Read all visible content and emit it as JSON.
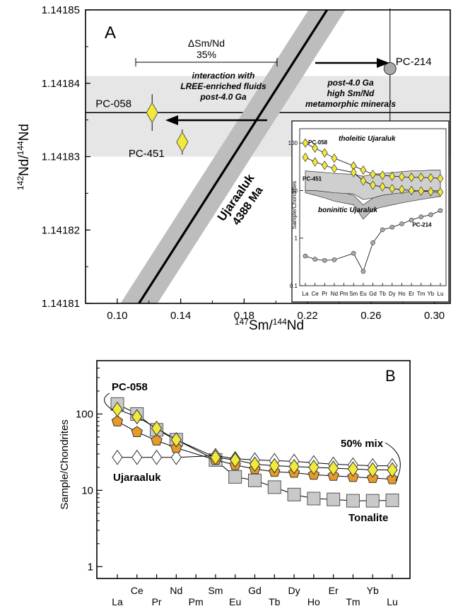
{
  "chart_data": [
    {
      "panel_label": "A",
      "type": "scatter",
      "xlabel": {
        "sup": "147",
        "main": "Sm/",
        "sup2": "144",
        "main2": "Nd"
      },
      "ylabel": {
        "sup": "142",
        "main": "Nd/",
        "sup2": "144",
        "main2": "Nd"
      },
      "xlim": [
        0.08,
        0.31
      ],
      "ylim": [
        1.14181,
        1.14185
      ],
      "x_ticks": [
        "0.10",
        "0.14",
        "0.18",
        "0.22",
        "0.26",
        "0.30"
      ],
      "x_tick_values": [
        0.1,
        0.14,
        0.18,
        0.22,
        0.26,
        0.3
      ],
      "y_ticks": [
        "1.14181",
        "1.14182",
        "1.14183",
        "1.14184",
        "1.14185"
      ],
      "y_tick_values": [
        1.14181,
        1.14182,
        1.14183,
        1.14184,
        1.14185
      ],
      "band": {
        "y_min": 1.14183,
        "y_max": 1.141841
      },
      "points": [
        {
          "label": "PC-058",
          "x": 0.122,
          "y": 1.141836,
          "y_err": 2.5e-06,
          "shape": "diamond",
          "color": "#f2ea3a"
        },
        {
          "label": "PC-451",
          "x": 0.141,
          "y": 1.141832,
          "y_err": 1.7e-06,
          "shape": "diamond",
          "color": "#f2ea3a"
        },
        {
          "label": "PC-214",
          "x": 0.272,
          "y": 1.141842,
          "y_err": 8.2e-06,
          "shape": "circle",
          "color": "#aaaaaa"
        }
      ],
      "isochron": {
        "label1": "Ujaraaluk",
        "label2": "4388 Ma",
        "x1": 0.108,
        "y1": 1.14181,
        "x2": 0.238,
        "y2": 1.14185,
        "uncertainty_color": "#bdbdbd"
      },
      "annotations": {
        "delta_label": "ΔSm/Nd",
        "delta_value": "35%",
        "left_text_1": "interaction with",
        "left_text_2": "LREE-enriched fluids",
        "left_text_3": "post-4.0 Ga",
        "right_text_1": "post-4.0 Ga",
        "right_text_2": "high Sm/Nd",
        "right_text_3": "metamorphic minerals"
      },
      "inset": {
        "type": "line",
        "ylabel": "Sample/Chondrites",
        "y_scale": "log",
        "ylim": [
          0.1,
          200
        ],
        "y_ticks": [
          "0.1",
          "1",
          "10",
          "100"
        ],
        "categories": [
          "La",
          "Ce",
          "Pr",
          "Nd",
          "Pm",
          "Sm",
          "Eu",
          "Gd",
          "Tb",
          "Dy",
          "Ho",
          "Er",
          "Tm",
          "Yb",
          "Lu"
        ],
        "field_labels": {
          "tholeiitic": "tholeitic Ujaraluk",
          "boninitic": "boninitic Ujaraluk"
        },
        "series": [
          {
            "name": "PC-058",
            "values": [
              100,
              78,
              62,
              48,
              null,
              33,
              27,
              22,
              21,
              20,
              19.5,
              19,
              19,
              18.5,
              18
            ]
          },
          {
            "name": "PC-451",
            "values": [
              50,
              40,
              34,
              29,
              null,
              24,
              16,
              13,
              12,
              11,
              10.5,
              10,
              9.8,
              9.5,
              9.3
            ]
          },
          {
            "name": "PC-214",
            "values": [
              0.42,
              0.36,
              0.34,
              0.35,
              null,
              0.48,
              0.2,
              0.8,
              1.5,
              1.7,
              2.0,
              2.4,
              2.8,
              3.1,
              3.8
            ]
          }
        ]
      }
    },
    {
      "panel_label": "B",
      "type": "line",
      "ylabel": "Sample/Chondrites",
      "y_scale": "log",
      "ylim": [
        0.7,
        500
      ],
      "y_ticks": [
        "1",
        "10",
        "100"
      ],
      "categories": [
        "La",
        "Ce",
        "Pr",
        "Nd",
        "Pm",
        "Sm",
        "Eu",
        "Gd",
        "Tb",
        "Dy",
        "Ho",
        "Er",
        "Tm",
        "Yb",
        "Lu"
      ],
      "series": [
        {
          "name": "PC-058",
          "marker": "diamond",
          "color": "#f2ea3a",
          "values": [
            115,
            92,
            65,
            46,
            null,
            27,
            25,
            22,
            21,
            20.5,
            20,
            19.5,
            19,
            18.5,
            18.5
          ]
        },
        {
          "name": "Ujaraaluk",
          "marker": "diamond",
          "color": "#ffffff",
          "values": [
            27,
            27,
            27,
            27,
            null,
            28.5,
            26,
            25,
            24.5,
            24,
            23,
            22,
            21.5,
            21,
            21
          ]
        },
        {
          "name": "50% mix",
          "marker": "pentagon",
          "color": "#e59a2a",
          "values": [
            80,
            58,
            45,
            36,
            null,
            25,
            21.5,
            19,
            17.5,
            17,
            16,
            15.5,
            15,
            14.5,
            14
          ]
        },
        {
          "name": "Tonalite",
          "marker": "square",
          "color": "#c9c9c9",
          "values": [
            135,
            100,
            62,
            46,
            null,
            25,
            15,
            13.5,
            11,
            8.8,
            7.8,
            7.6,
            7.3,
            7.3,
            7.4
          ]
        }
      ]
    }
  ]
}
